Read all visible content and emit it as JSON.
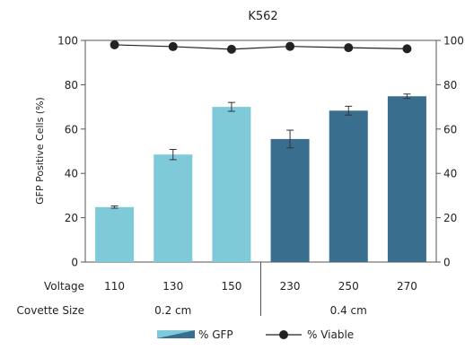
{
  "chart_data": {
    "type": "bar",
    "title": "K562",
    "ylabel": "GFP Positive Cells (%)",
    "ylim": [
      0,
      100
    ],
    "yticks": [
      0,
      20,
      40,
      60,
      80,
      100
    ],
    "y2lim": [
      0,
      100
    ],
    "y2ticks": [
      0,
      20,
      40,
      60,
      80,
      100
    ],
    "row_labels": {
      "voltage": "Voltage",
      "cuvette": "Covette Size"
    },
    "categories": [
      "110",
      "130",
      "150",
      "230",
      "250",
      "270"
    ],
    "groups": [
      {
        "label": "0.2 cm",
        "start": 0,
        "end": 2
      },
      {
        "label": "0.4 cm",
        "start": 3,
        "end": 5
      }
    ],
    "series": [
      {
        "name": "% GFP",
        "kind": "bar",
        "values": [
          24.8,
          48.5,
          70.0,
          55.5,
          68.3,
          74.8
        ],
        "errors": [
          0.5,
          2.3,
          2.0,
          4.0,
          2.0,
          1.0
        ],
        "colors": [
          "#7ECAD8",
          "#7ECAD8",
          "#7ECAD8",
          "#3A6E8F",
          "#3A6E8F",
          "#3A6E8F"
        ]
      },
      {
        "name": "% Viable",
        "kind": "line",
        "axis": "right",
        "values": [
          98.0,
          97.2,
          96.0,
          97.3,
          96.7,
          96.2
        ],
        "color": "#222222"
      }
    ],
    "legend_position": "bottom-center",
    "grid": false
  }
}
